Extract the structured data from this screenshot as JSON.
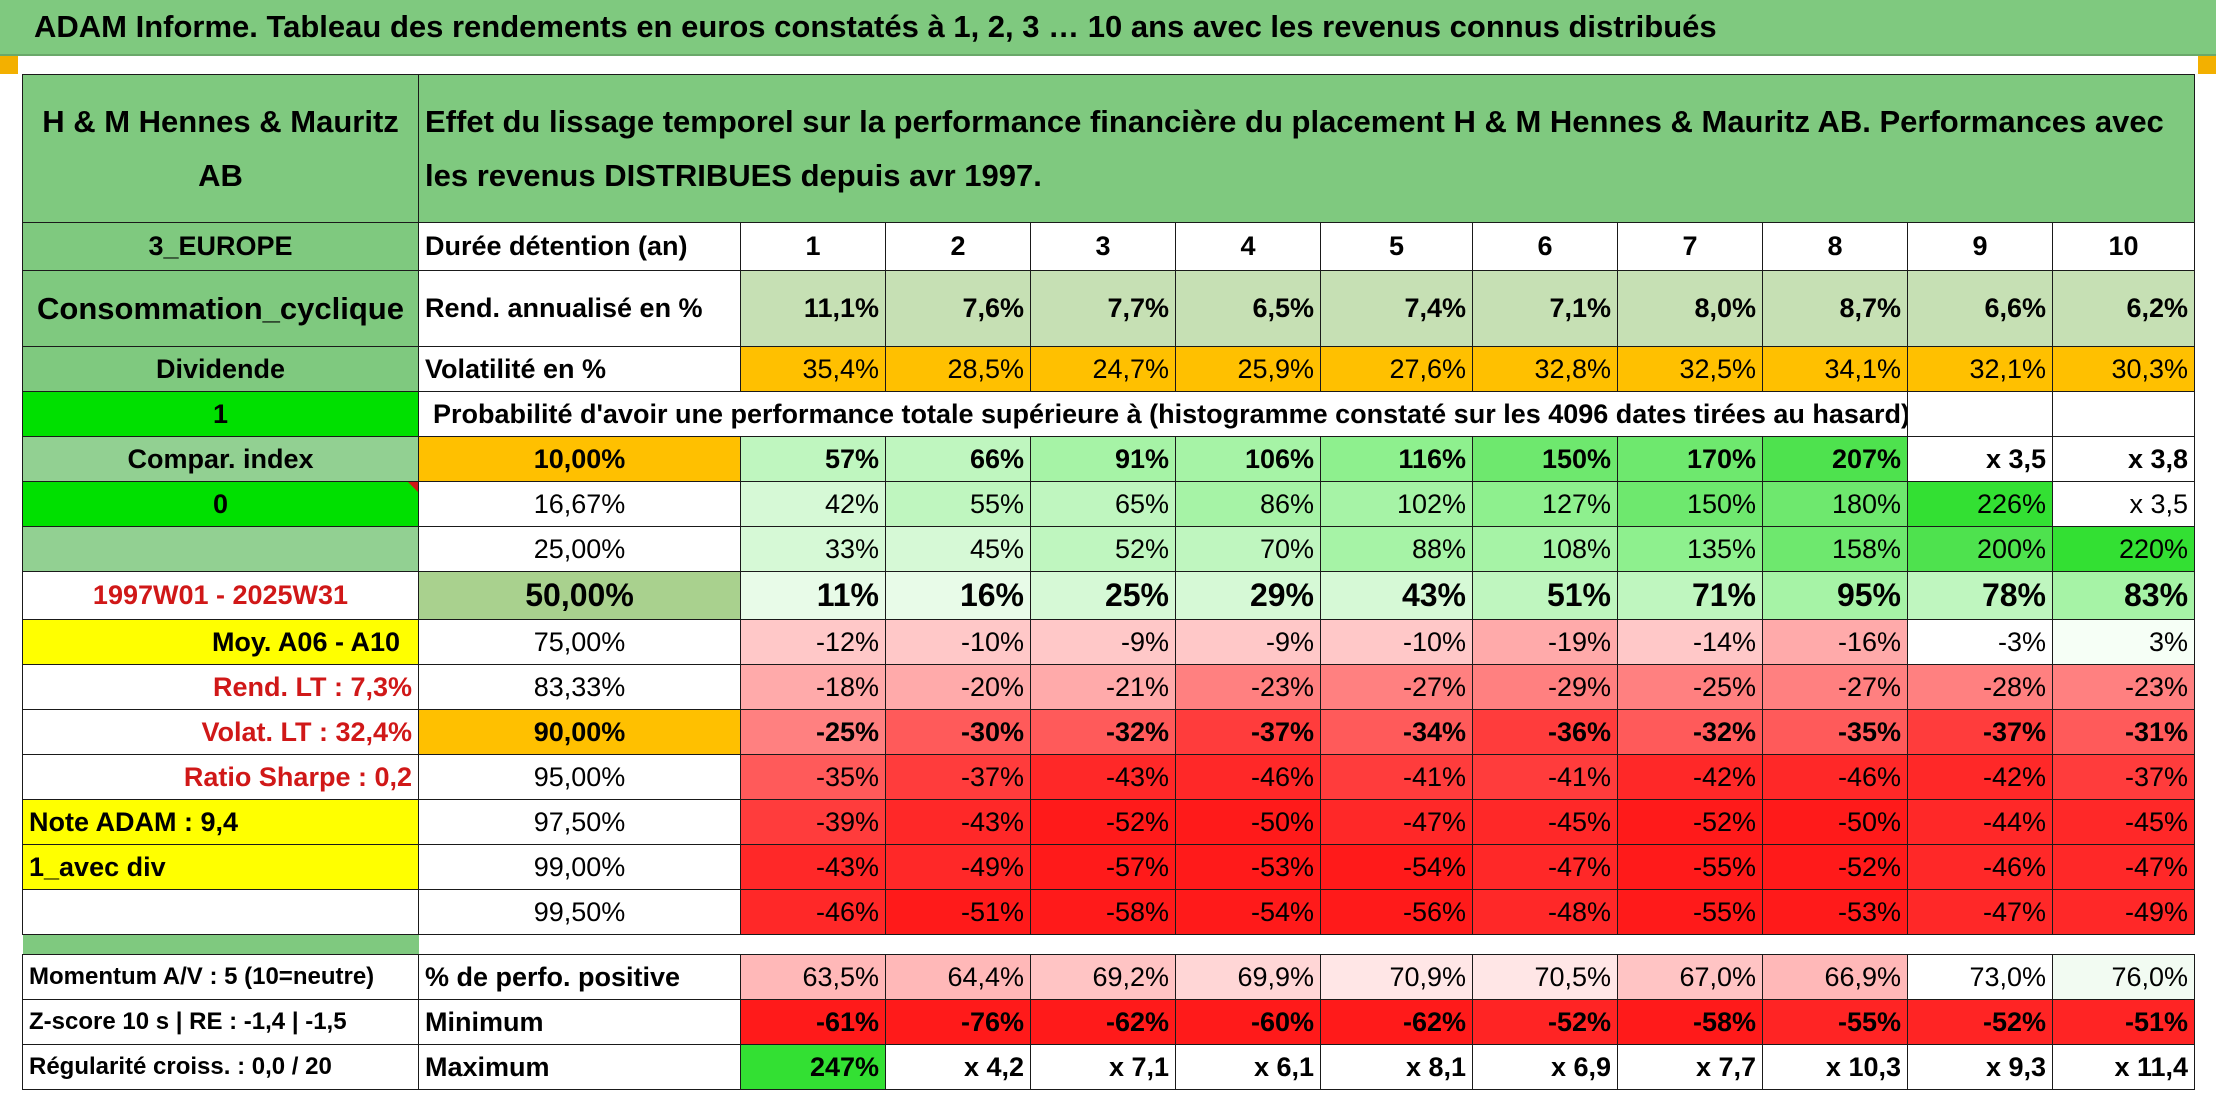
{
  "banner": "ADAM Informe. Tableau des rendements en euros constatés à 1, 2, 3 … 10 ans avec les revenus connus distribués",
  "company": "H & M Hennes & Mauritz AB",
  "description": "Effet du lissage temporel sur la performance financière du placement H & M Hennes & Mauritz AB. Performances avec les revenus DISTRIBUES depuis avr 1997.",
  "colors": {
    "header_green": "#7fc97f",
    "rend_green": "#c6e0b4",
    "vol_orange": "#ffc000",
    "bright_green": "#00e000",
    "yellow": "#ffff00",
    "label_red": "#d01818"
  },
  "left": {
    "region": "3_EUROPE",
    "sector": "Consommation_cyclique",
    "dividend_label": "Dividende",
    "value_1": "1",
    "compar": "Compar. index",
    "value_0": "0",
    "period": "1997W01 - 2025W31",
    "moy": "Moy. A06 - A10",
    "rend_lt": "Rend. LT :   7,3%",
    "volat_lt": "Volat. LT :   32,4%",
    "sharpe": "Ratio Sharpe :   0,2",
    "note": "Note ADAM : 9,4",
    "avec_div": "1_avec div",
    "momentum": "Momentum A/V : 5 (10=neutre)",
    "zscore": "Z-score 10 s | RE : -1,4 | -1,5",
    "regularite": "Régularité croiss. : 0,0 / 20"
  },
  "labels": {
    "duree": "Durée détention (an)",
    "rend": "Rend. annualisé en %",
    "vol": "Volatilité en %",
    "proba": "Probabilité d'avoir une performance totale supérieure à (histogramme constaté sur les 4096 dates tirées au hasard)",
    "positive": "% de perfo. positive",
    "minimum": "Minimum",
    "maximum": "Maximum"
  },
  "years": [
    "1",
    "2",
    "3",
    "4",
    "5",
    "6",
    "7",
    "8",
    "9",
    "10"
  ],
  "rend": [
    "11,1%",
    "7,6%",
    "7,7%",
    "6,5%",
    "7,4%",
    "7,1%",
    "8,0%",
    "8,7%",
    "6,6%",
    "6,2%"
  ],
  "vol": [
    "35,4%",
    "28,5%",
    "24,7%",
    "25,9%",
    "27,6%",
    "32,8%",
    "32,5%",
    "34,1%",
    "32,1%",
    "30,3%"
  ],
  "quantiles": [
    {
      "q": "10,00%",
      "values": [
        "57%",
        "66%",
        "91%",
        "106%",
        "116%",
        "150%",
        "170%",
        "207%",
        "x 3,5",
        "x 3,8"
      ]
    },
    {
      "q": "16,67%",
      "values": [
        "42%",
        "55%",
        "65%",
        "86%",
        "102%",
        "127%",
        "150%",
        "180%",
        "226%",
        "x 3,5"
      ]
    },
    {
      "q": "25,00%",
      "values": [
        "33%",
        "45%",
        "52%",
        "70%",
        "88%",
        "108%",
        "135%",
        "158%",
        "200%",
        "220%"
      ]
    },
    {
      "q": "50,00%",
      "values": [
        "11%",
        "16%",
        "25%",
        "29%",
        "43%",
        "51%",
        "71%",
        "95%",
        "78%",
        "83%"
      ]
    },
    {
      "q": "75,00%",
      "values": [
        "-12%",
        "-10%",
        "-9%",
        "-9%",
        "-10%",
        "-19%",
        "-14%",
        "-16%",
        "-3%",
        "3%"
      ]
    },
    {
      "q": "83,33%",
      "values": [
        "-18%",
        "-20%",
        "-21%",
        "-23%",
        "-27%",
        "-29%",
        "-25%",
        "-27%",
        "-28%",
        "-23%"
      ]
    },
    {
      "q": "90,00%",
      "values": [
        "-25%",
        "-30%",
        "-32%",
        "-37%",
        "-34%",
        "-36%",
        "-32%",
        "-35%",
        "-37%",
        "-31%"
      ]
    },
    {
      "q": "95,00%",
      "values": [
        "-35%",
        "-37%",
        "-43%",
        "-46%",
        "-41%",
        "-41%",
        "-42%",
        "-46%",
        "-42%",
        "-37%"
      ]
    },
    {
      "q": "97,50%",
      "values": [
        "-39%",
        "-43%",
        "-52%",
        "-50%",
        "-47%",
        "-45%",
        "-52%",
        "-50%",
        "-44%",
        "-45%"
      ]
    },
    {
      "q": "99,00%",
      "values": [
        "-43%",
        "-49%",
        "-57%",
        "-53%",
        "-54%",
        "-47%",
        "-55%",
        "-52%",
        "-46%",
        "-47%"
      ]
    },
    {
      "q": "99,50%",
      "values": [
        "-46%",
        "-51%",
        "-58%",
        "-54%",
        "-56%",
        "-48%",
        "-55%",
        "-53%",
        "-47%",
        "-49%"
      ]
    }
  ],
  "positive": [
    "63,5%",
    "64,4%",
    "69,2%",
    "69,9%",
    "70,9%",
    "70,5%",
    "67,0%",
    "66,9%",
    "73,0%",
    "76,0%"
  ],
  "minimum": [
    "-61%",
    "-76%",
    "-62%",
    "-60%",
    "-62%",
    "-52%",
    "-58%",
    "-55%",
    "-52%",
    "-51%"
  ],
  "maximum": [
    "247%",
    "x 4,2",
    "x 7,1",
    "x 6,1",
    "x 8,1",
    "x 6,9",
    "x 7,7",
    "x 10,3",
    "x 9,3",
    "x 11,4"
  ]
}
